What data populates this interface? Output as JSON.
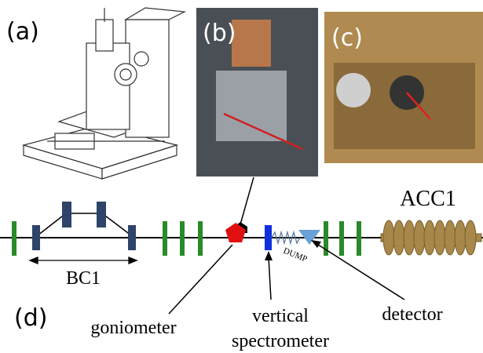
{
  "panels": {
    "a": "(a)",
    "b": "(b)",
    "c": "(c)",
    "d": "(d)"
  },
  "beamline": {
    "bc1": "BC1",
    "acc1": "ACC1",
    "dump": "DUMP",
    "goniometer": "goniometer",
    "spectrometer": [
      "vertical",
      "spectrometer"
    ],
    "detector": "detector"
  }
}
